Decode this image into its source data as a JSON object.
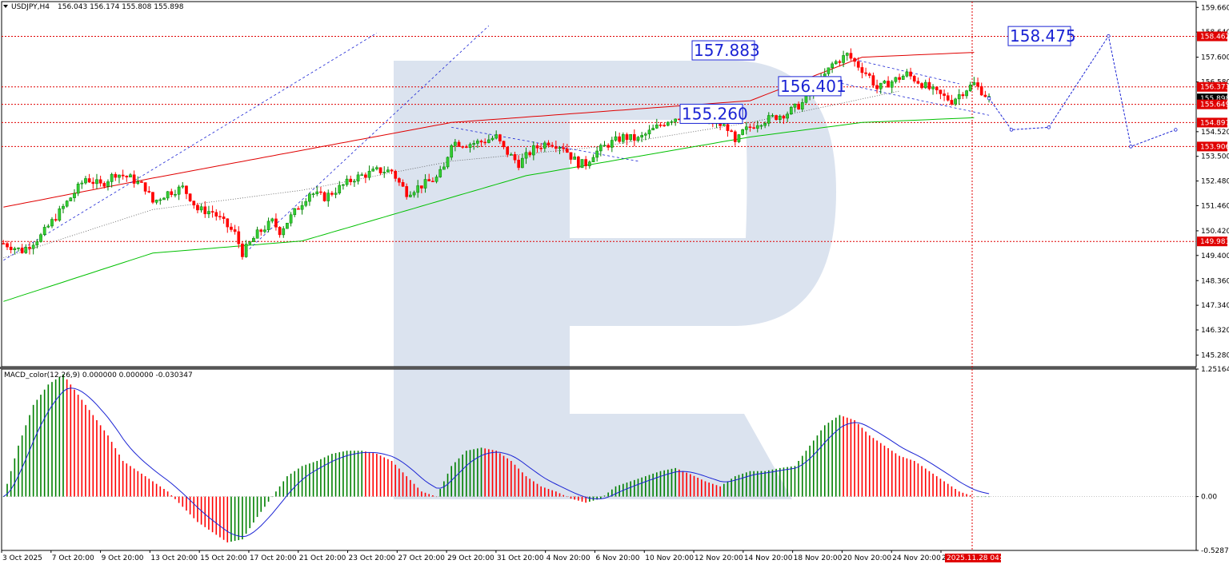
{
  "header": {
    "symbol_tf": "USDJPY,H4",
    "ohlc": "156.043 156.174 155.808 155.898",
    "indicator": "MACD_color(12,26,9) 0.000000 0.000000 -0.030347"
  },
  "colors": {
    "bull": "#008000",
    "bear": "#ff0000",
    "ma_red": "#e00000",
    "ma_green": "#00c000",
    "forecast": "#1a23d4",
    "level_line": "#e00000",
    "watermark": "#d9e2ee"
  },
  "chart_data": [
    {
      "type": "candlestick",
      "title": "USDJPY,H4",
      "ylim": [
        144.8,
        159.9
      ],
      "y_ticks": [
        "159.660",
        "158.640",
        "157.600",
        "156.580",
        "155.898",
        "154.520",
        "153.500",
        "152.480",
        "151.460",
        "150.420",
        "149.400",
        "148.360",
        "147.340",
        "146.320",
        "145.280"
      ],
      "x_ticks": [
        "3 Oct 2025",
        "7 Oct 20:00",
        "9 Oct 20:00",
        "13 Oct 20:00",
        "15 Oct 20:00",
        "17 Oct 20:00",
        "21 Oct 20:00",
        "23 Oct 20:00",
        "27 Oct 20:00",
        "29 Oct 20:00",
        "31 Oct 20:00",
        "4 Nov 20:00",
        "6 Nov 20:00",
        "10 Nov 20:00",
        "12 Nov 20:00",
        "14 Nov 20:00",
        "18 Nov 20:00",
        "20 Nov 20:00",
        "24 Nov 20:00",
        "2"
      ],
      "x_highlight": "2025.11.28 04:00",
      "current_price": "155.898",
      "levels": [
        {
          "value": 158.462,
          "label": "158.462"
        },
        {
          "value": 156.373,
          "label": "156.373"
        },
        {
          "value": 155.649,
          "label": "155.649"
        },
        {
          "value": 154.897,
          "label": "154.897"
        },
        {
          "value": 153.906,
          "label": "153.906"
        },
        {
          "value": 149.981,
          "label": "149.981"
        }
      ],
      "annotations": [
        {
          "text": "157.883",
          "value": 157.883
        },
        {
          "text": "156.401",
          "value": 156.401
        },
        {
          "text": "155.260",
          "value": 155.26
        },
        {
          "text": "158.475",
          "value": 158.475
        }
      ],
      "close_path": [
        [
          0,
          149.9
        ],
        [
          5,
          149.6
        ],
        [
          10,
          150.2
        ],
        [
          14,
          151.0
        ],
        [
          18,
          151.8
        ],
        [
          22,
          152.6
        ],
        [
          26,
          152.3
        ],
        [
          30,
          152.8
        ],
        [
          34,
          152.6
        ],
        [
          38,
          152.2
        ],
        [
          40,
          151.6
        ],
        [
          44,
          152.0
        ],
        [
          48,
          152.2
        ],
        [
          50,
          151.8
        ],
        [
          52,
          151.3
        ],
        [
          56,
          151.2
        ],
        [
          60,
          150.6
        ],
        [
          62,
          150.3
        ],
        [
          64,
          149.5
        ],
        [
          68,
          150.3
        ],
        [
          72,
          150.8
        ],
        [
          74,
          150.4
        ],
        [
          78,
          151.2
        ],
        [
          82,
          152.0
        ],
        [
          86,
          151.8
        ],
        [
          90,
          152.2
        ],
        [
          94,
          152.6
        ],
        [
          98,
          152.8
        ],
        [
          100,
          152.9
        ],
        [
          104,
          152.9
        ],
        [
          106,
          152.4
        ],
        [
          108,
          152.0
        ],
        [
          112,
          152.3
        ],
        [
          116,
          152.6
        ],
        [
          118,
          153.0
        ],
        [
          120,
          154.1
        ],
        [
          124,
          154.0
        ],
        [
          128,
          154.1
        ],
        [
          132,
          154.3
        ],
        [
          134,
          153.8
        ],
        [
          138,
          153.2
        ],
        [
          142,
          153.8
        ],
        [
          146,
          154.1
        ],
        [
          150,
          153.9
        ],
        [
          152,
          153.5
        ],
        [
          154,
          153.2
        ],
        [
          156,
          153.2
        ],
        [
          158,
          153.6
        ],
        [
          162,
          154.0
        ],
        [
          166,
          154.3
        ],
        [
          170,
          154.2
        ],
        [
          174,
          154.6
        ],
        [
          178,
          155.0
        ],
        [
          182,
          155.2
        ],
        [
          186,
          155.1
        ],
        [
          190,
          154.9
        ],
        [
          194,
          154.7
        ],
        [
          196,
          154.0
        ],
        [
          198,
          154.5
        ],
        [
          202,
          154.9
        ],
        [
          206,
          155.1
        ],
        [
          210,
          155.3
        ],
        [
          214,
          155.7
        ],
        [
          218,
          156.4
        ],
        [
          222,
          157.3
        ],
        [
          226,
          157.7
        ],
        [
          228,
          157.4
        ],
        [
          232,
          156.8
        ],
        [
          234,
          156.3
        ],
        [
          238,
          156.6
        ],
        [
          242,
          156.9
        ],
        [
          246,
          156.5
        ],
        [
          250,
          156.1
        ],
        [
          254,
          155.8
        ],
        [
          258,
          156.3
        ],
        [
          260,
          156.5
        ],
        [
          264,
          155.9
        ]
      ],
      "ma_red": [
        [
          0,
          151.4
        ],
        [
          40,
          152.6
        ],
        [
          120,
          154.9
        ],
        [
          200,
          155.8
        ],
        [
          230,
          157.6
        ],
        [
          260,
          157.8
        ]
      ],
      "ma_green": [
        [
          0,
          147.5
        ],
        [
          40,
          149.5
        ],
        [
          80,
          150.0
        ],
        [
          140,
          152.7
        ],
        [
          200,
          154.3
        ],
        [
          230,
          154.9
        ],
        [
          260,
          155.1
        ]
      ],
      "wma_dotted": [
        [
          0,
          149.3
        ],
        [
          40,
          151.3
        ],
        [
          80,
          152.1
        ],
        [
          120,
          153.3
        ],
        [
          160,
          153.9
        ],
        [
          200,
          154.9
        ],
        [
          240,
          156.2
        ]
      ],
      "forecast_path": [
        [
          264,
          155.898
        ],
        [
          270,
          154.6
        ],
        [
          280,
          154.7
        ],
        [
          296,
          158.475
        ],
        [
          302,
          153.906
        ],
        [
          314,
          154.6
        ]
      ]
    },
    {
      "type": "bar",
      "title": "MACD_color(12,26,9)",
      "ylim": [
        -0.528703,
        1.251642
      ],
      "y_ticks": [
        "1.251642",
        "0.00",
        "-0.528703"
      ],
      "macd_path": [
        [
          0,
          0.0
        ],
        [
          4,
          0.5
        ],
        [
          8,
          0.9
        ],
        [
          12,
          1.1
        ],
        [
          16,
          1.2
        ],
        [
          20,
          1.0
        ],
        [
          24,
          0.8
        ],
        [
          28,
          0.6
        ],
        [
          32,
          0.35
        ],
        [
          36,
          0.25
        ],
        [
          40,
          0.15
        ],
        [
          44,
          0.05
        ],
        [
          48,
          -0.1
        ],
        [
          52,
          -0.25
        ],
        [
          56,
          -0.35
        ],
        [
          60,
          -0.45
        ],
        [
          64,
          -0.42
        ],
        [
          68,
          -0.2
        ],
        [
          72,
          0.0
        ],
        [
          76,
          0.2
        ],
        [
          80,
          0.3
        ],
        [
          84,
          0.35
        ],
        [
          88,
          0.42
        ],
        [
          92,
          0.45
        ],
        [
          96,
          0.45
        ],
        [
          100,
          0.42
        ],
        [
          104,
          0.35
        ],
        [
          108,
          0.2
        ],
        [
          112,
          0.05
        ],
        [
          116,
          0.0
        ],
        [
          120,
          0.3
        ],
        [
          124,
          0.45
        ],
        [
          128,
          0.48
        ],
        [
          132,
          0.45
        ],
        [
          136,
          0.35
        ],
        [
          140,
          0.2
        ],
        [
          144,
          0.1
        ],
        [
          148,
          0.05
        ],
        [
          152,
          -0.02
        ],
        [
          156,
          -0.06
        ],
        [
          160,
          -0.02
        ],
        [
          164,
          0.1
        ],
        [
          168,
          0.15
        ],
        [
          172,
          0.2
        ],
        [
          176,
          0.25
        ],
        [
          180,
          0.28
        ],
        [
          184,
          0.22
        ],
        [
          188,
          0.15
        ],
        [
          192,
          0.1
        ],
        [
          196,
          0.2
        ],
        [
          200,
          0.25
        ],
        [
          204,
          0.25
        ],
        [
          208,
          0.28
        ],
        [
          212,
          0.3
        ],
        [
          216,
          0.5
        ],
        [
          220,
          0.7
        ],
        [
          224,
          0.8
        ],
        [
          228,
          0.75
        ],
        [
          232,
          0.6
        ],
        [
          236,
          0.5
        ],
        [
          240,
          0.4
        ],
        [
          244,
          0.35
        ],
        [
          248,
          0.25
        ],
        [
          252,
          0.15
        ],
        [
          256,
          0.05
        ],
        [
          260,
          0.0
        ],
        [
          264,
          0.0
        ]
      ]
    }
  ]
}
